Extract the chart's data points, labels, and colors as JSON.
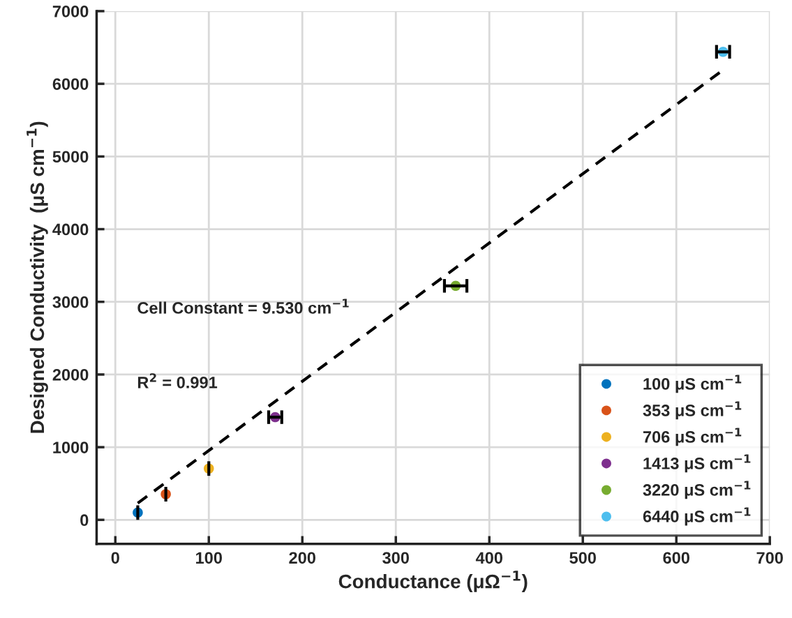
{
  "chart_data": {
    "type": "scatter",
    "xlabel": "Conductance (μΩ$^{−1}$)",
    "ylabel": "Designed Conductivity  (μS cm$^{−1}$)",
    "annotations": [
      "Cell Constant = 9.530 cm$^{−1}$",
      "R$^{2}$ = 0.991"
    ],
    "series": [
      {
        "name": "100 μS cm$^{−1}$",
        "color": "#0072bd",
        "x": [
          24
        ],
        "values": [
          100
        ],
        "errors": [
          100
        ]
      },
      {
        "name": "353 μS cm$^{−1}$",
        "color": "#d95319",
        "x": [
          54
        ],
        "values": [
          353
        ],
        "errors": [
          100
        ]
      },
      {
        "name": "706 μS cm$^{−1}$",
        "color": "#edb120",
        "x": [
          100
        ],
        "values": [
          706
        ],
        "errors": [
          100
        ]
      },
      {
        "name": "1413 μS cm$^{−1}$",
        "color": "#7e2f8e",
        "x": [
          171
        ],
        "values": [
          1413
        ],
        "xerrors": [
          7
        ]
      },
      {
        "name": "3220 μS cm$^{−1}$",
        "color": "#77ac30",
        "x": [
          364
        ],
        "values": [
          3220
        ],
        "xerrors": [
          12
        ]
      },
      {
        "name": "6440 μS cm$^{−1}$",
        "color": "#4dbeee",
        "x": [
          650
        ],
        "values": [
          6440
        ],
        "xerrors": [
          7
        ]
      },
      {
        "type": "line",
        "color": "#000000",
        "line_style": "dashed",
        "marker": "none",
        "x": [
          24,
          650
        ],
        "values": [
          230,
          6190
        ]
      }
    ],
    "xlim": [
      -20,
      700
    ],
    "xticks": [
      0,
      100,
      200,
      300,
      400,
      500,
      600,
      700
    ],
    "ylim": [
      -330,
      7000
    ],
    "yticks": [
      0,
      1000,
      2000,
      3000,
      4000,
      5000,
      6000,
      7000
    ],
    "grid": true,
    "legend": "bottom right",
    "marker": "circle"
  }
}
